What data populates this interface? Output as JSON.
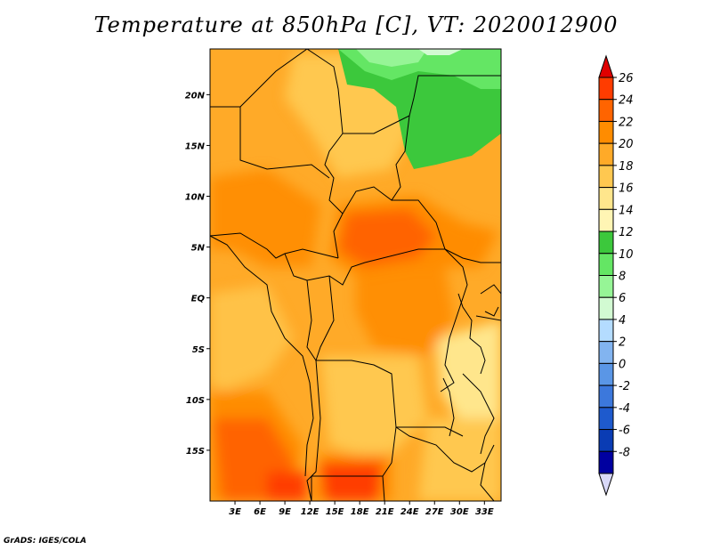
{
  "title": "Temperature at 850hPa [C], VT: 2020012900",
  "credit": "GrADS: IGES/COLA",
  "map": {
    "lat_labels": [
      "20N",
      "15N",
      "10N",
      "5N",
      "EQ",
      "5S",
      "10S",
      "15S"
    ],
    "lat_values": [
      20,
      15,
      10,
      5,
      0,
      -5,
      -10,
      -15
    ],
    "lon_labels": [
      "3E",
      "6E",
      "9E",
      "12E",
      "15E",
      "18E",
      "21E",
      "24E",
      "27E",
      "30E",
      "33E"
    ],
    "lon_values": [
      3,
      6,
      9,
      12,
      15,
      18,
      21,
      24,
      27,
      30,
      33
    ],
    "lon_range": [
      0,
      35
    ],
    "lat_range": [
      -20,
      24.5
    ]
  },
  "colorbar": {
    "labels": [
      "26",
      "24",
      "22",
      "20",
      "18",
      "16",
      "14",
      "12",
      "10",
      "8",
      "6",
      "4",
      "2",
      "0",
      "-2",
      "-4",
      "-6",
      "-8"
    ],
    "colors": [
      "#e00000",
      "#ff3c00",
      "#ff6400",
      "#ff8c00",
      "#ffaa28",
      "#ffc850",
      "#ffe68c",
      "#fff5b4",
      "#3cc83c",
      "#64e664",
      "#96f596",
      "#d2fad2",
      "#b4dcff",
      "#82b4f0",
      "#5a96e6",
      "#3c78dc",
      "#1e5acd",
      "#0a3cb4",
      "#0000a0",
      "#000070"
    ],
    "top_arrow_color": "#e00000",
    "bottom_arrow_color": "#d8d8f8"
  }
}
